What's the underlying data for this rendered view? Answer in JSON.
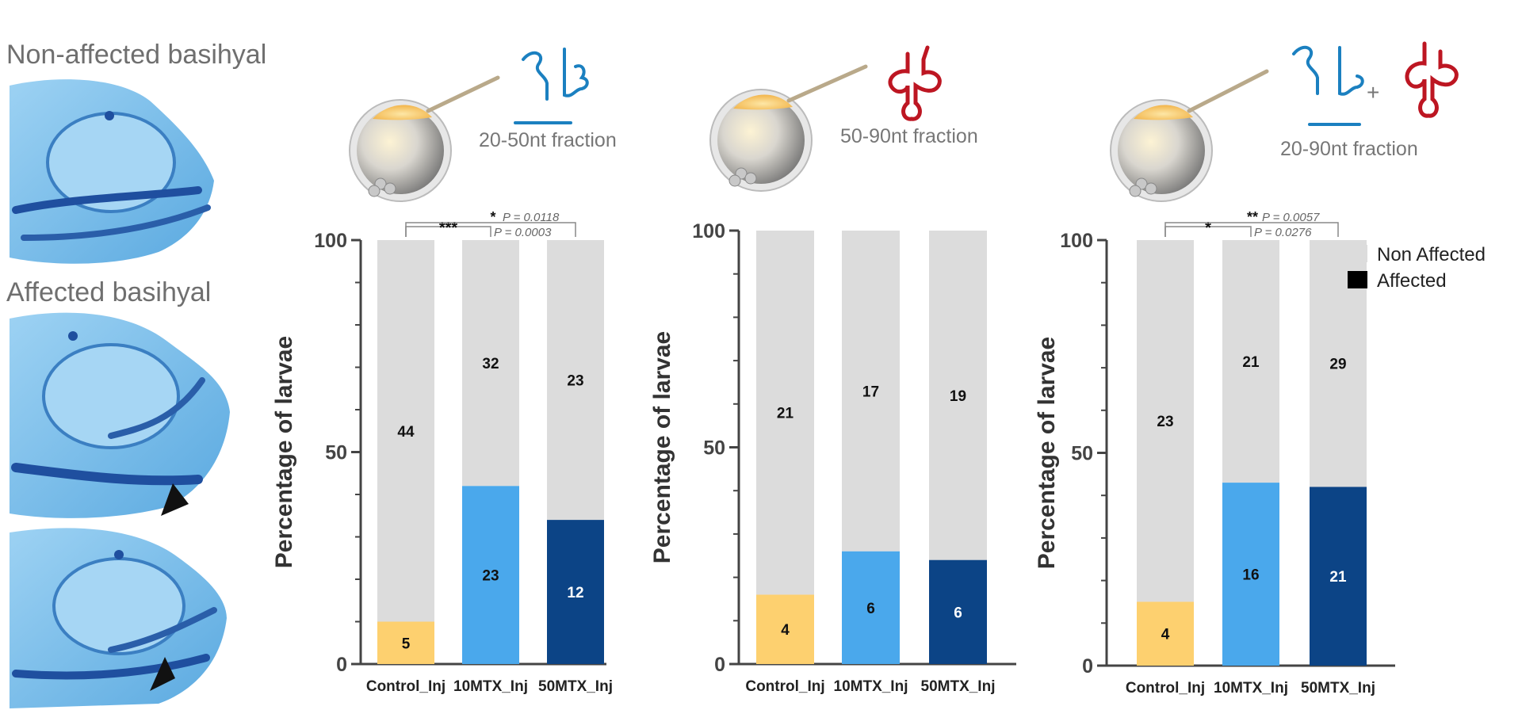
{
  "panels": {
    "nonaffected_title": "Non-affected basihyal",
    "affected_title": "Affected basihyal"
  },
  "fractions": [
    "20-50nt fraction",
    "50-90nt fraction",
    "20-90nt fraction"
  ],
  "colors": {
    "non_affected": "#dcdcdc",
    "control": "#fdd06f",
    "mtx10": "#4aa8ec",
    "mtx50": "#0c4486",
    "rna_blue": "#1b80c0",
    "rna_red": "#bd1622",
    "photo_blue": "#4f9ed8"
  },
  "legend": {
    "non_affected": "Non Affected",
    "affected": "Affected"
  },
  "chart_data": [
    {
      "type": "bar",
      "stacked": true,
      "title": "20-50nt fraction",
      "ylabel": "Percentage of larvae",
      "ylim": [
        0,
        100
      ],
      "yticks": [
        "0",
        "50",
        "100"
      ],
      "categories": [
        "Control_Inj",
        "10MTX_Inj",
        "50MTX_Inj"
      ],
      "series": [
        {
          "name": "Affected",
          "values": [
            10,
            42,
            34
          ],
          "counts": [
            "5",
            "23",
            "12"
          ]
        },
        {
          "name": "Non Affected",
          "values": [
            90,
            58,
            66
          ],
          "counts": [
            "44",
            "32",
            "23"
          ]
        }
      ],
      "significance": [
        {
          "from": 0,
          "to": 1,
          "stars": "***",
          "p": "P = 0.0003"
        },
        {
          "from": 0,
          "to": 2,
          "stars": "*",
          "p": "P = 0.0118"
        }
      ]
    },
    {
      "type": "bar",
      "stacked": true,
      "title": "50-90nt fraction",
      "ylabel": "Percentage of larvae",
      "ylim": [
        0,
        100
      ],
      "yticks": [
        "0",
        "50",
        "100"
      ],
      "categories": [
        "Control_Inj",
        "10MTX_Inj",
        "50MTX_Inj"
      ],
      "series": [
        {
          "name": "Affected",
          "values": [
            16,
            26,
            24
          ],
          "counts": [
            "4",
            "6",
            "6"
          ]
        },
        {
          "name": "Non Affected",
          "values": [
            84,
            74,
            76
          ],
          "counts": [
            "21",
            "17",
            "19"
          ]
        }
      ],
      "significance": []
    },
    {
      "type": "bar",
      "stacked": true,
      "title": "20-90nt fraction",
      "ylabel": "Percentage of larvae",
      "ylim": [
        0,
        100
      ],
      "yticks": [
        "0",
        "50",
        "100"
      ],
      "categories": [
        "Control_Inj",
        "10MTX_Inj",
        "50MTX_Inj"
      ],
      "series": [
        {
          "name": "Affected",
          "values": [
            15,
            43,
            42
          ],
          "counts": [
            "4",
            "16",
            "21"
          ]
        },
        {
          "name": "Non Affected",
          "values": [
            85,
            57,
            58
          ],
          "counts": [
            "23",
            "21",
            "29"
          ]
        }
      ],
      "significance": [
        {
          "from": 0,
          "to": 1,
          "stars": "*",
          "p": "P = 0.0276"
        },
        {
          "from": 0,
          "to": 2,
          "stars": "**",
          "p": "P = 0.0057"
        }
      ]
    }
  ]
}
